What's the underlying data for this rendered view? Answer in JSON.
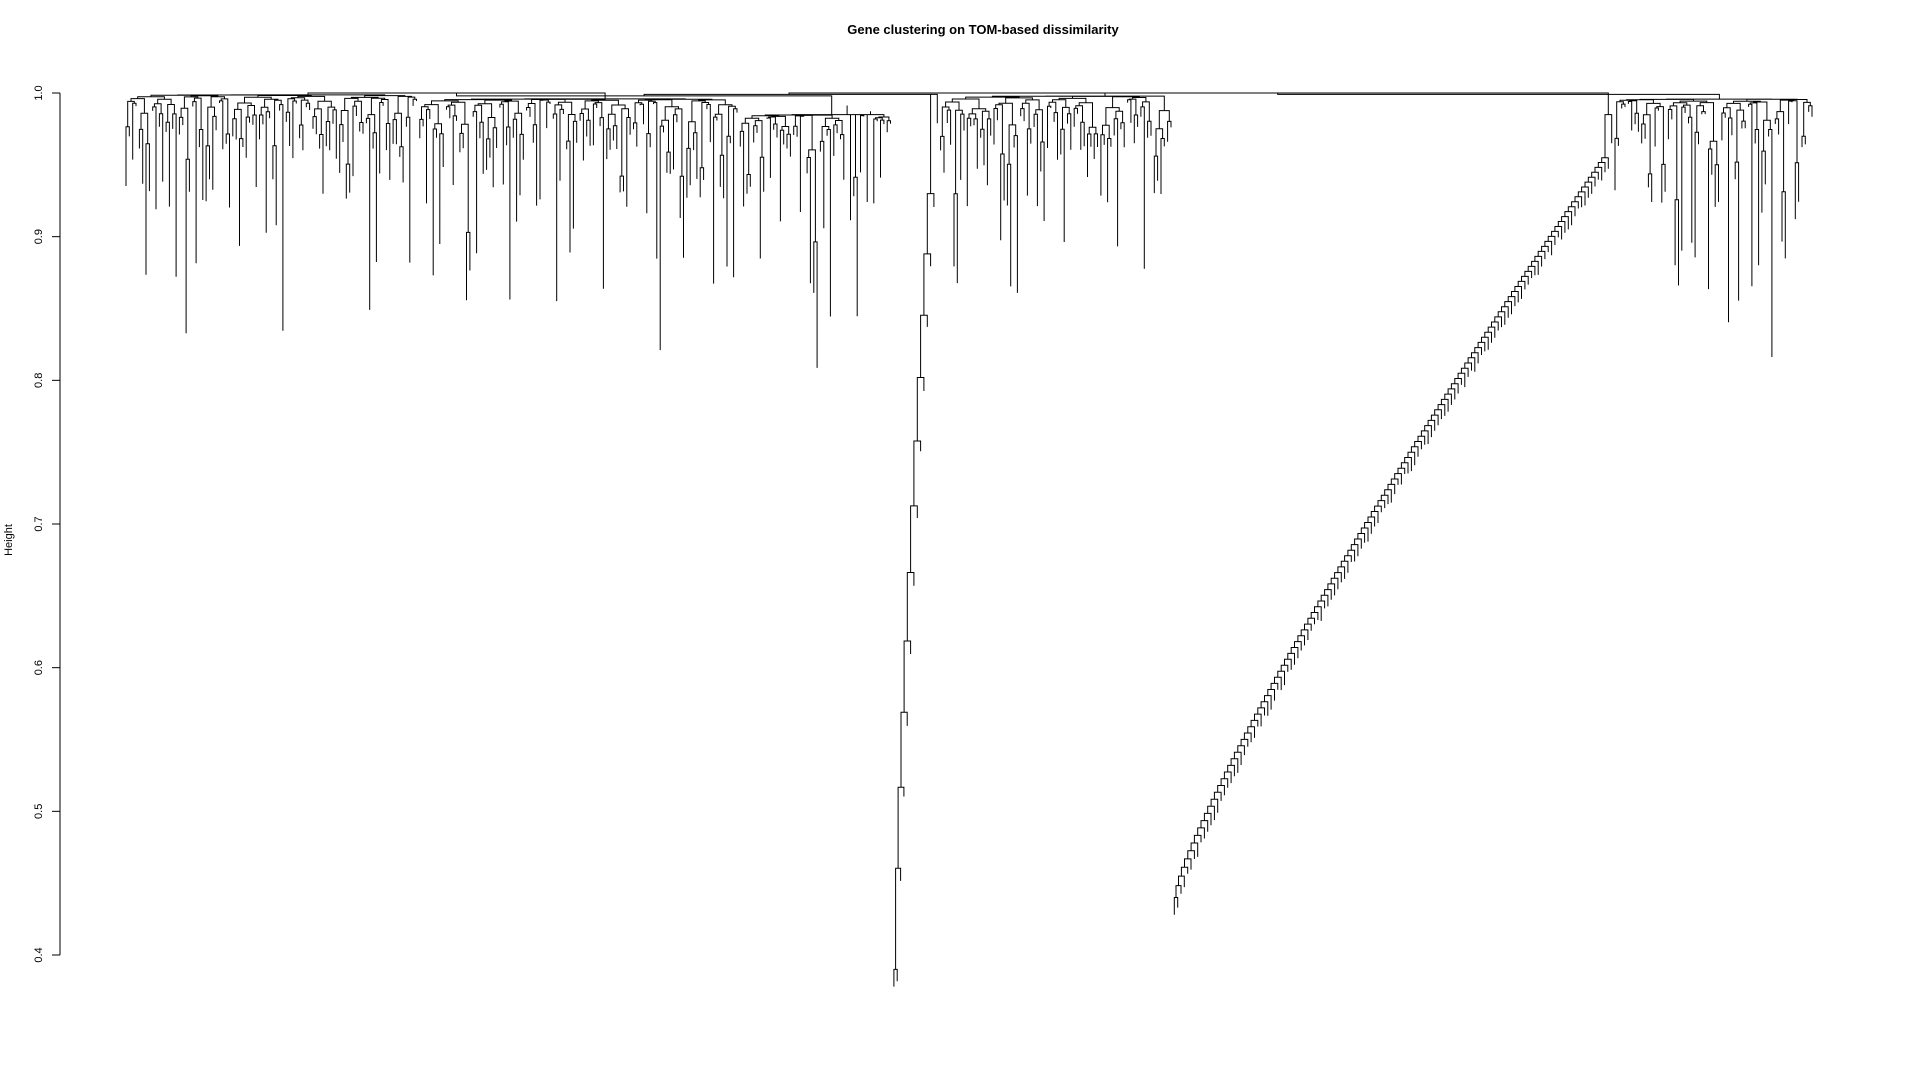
{
  "chart_data": {
    "type": "dendrogram",
    "title": "Gene clustering on TOM-based dissimilarity",
    "xlabel": "",
    "ylabel": "Height",
    "ylim": [
      0.4,
      1.0
    ],
    "y_ticks": [
      0.4,
      0.5,
      0.6,
      0.7,
      0.8,
      0.9,
      1.0
    ],
    "y_tick_labels": [
      "0.4",
      "0.5",
      "0.6",
      "0.7",
      "0.8",
      "0.9",
      "1.0"
    ],
    "leaf_count_approx": 1500,
    "grid": false,
    "legend": "none",
    "line_color": "#000000",
    "background": "#ffffff",
    "top_merge_height": 1.0,
    "notable_deep_branches": [
      {
        "label_shown": false,
        "min_height_approx": 0.39,
        "description": "deep narrow branch near middle"
      },
      {
        "label_shown": false,
        "min_height_approx": 0.44,
        "description": "staircase branch descending to the right"
      },
      {
        "label_shown": false,
        "min_height_approx": 0.72,
        "description": "long single branch"
      },
      {
        "label_shown": false,
        "min_height_approx": 0.74,
        "description": "long single branch"
      },
      {
        "label_shown": false,
        "min_height_approx": 0.75,
        "description": "long single branch"
      }
    ]
  }
}
